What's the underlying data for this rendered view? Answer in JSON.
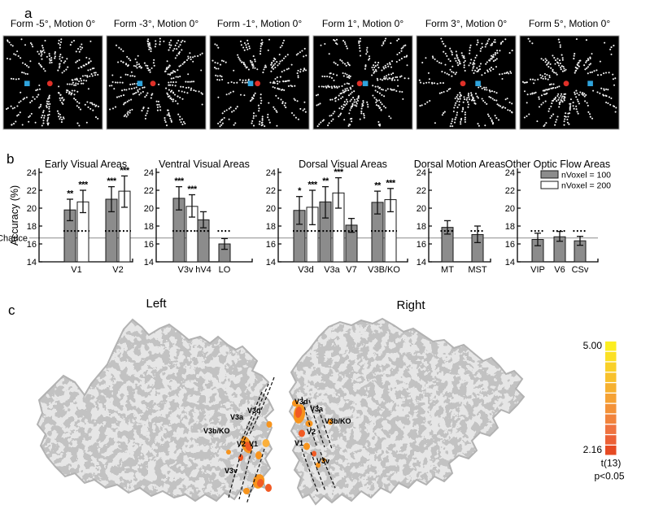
{
  "panel_a": {
    "label": "a",
    "marker_colors": {
      "red": "#e03028",
      "blue": "#2fa3dc"
    },
    "dot_color": "#f4f4f4",
    "stimuli": [
      {
        "title": "Form -5°, Motion 0°",
        "seed": 11,
        "red_fx": 0.47,
        "blue_fx": 0.24
      },
      {
        "title": "Form -3°, Motion 0°",
        "seed": 22,
        "red_fx": 0.467,
        "blue_fx": 0.335
      },
      {
        "title": "Form -1°, Motion 0°",
        "seed": 33,
        "red_fx": 0.48,
        "blue_fx": 0.41
      },
      {
        "title": "Form 1°, Motion 0°",
        "seed": 44,
        "red_fx": 0.468,
        "blue_fx": 0.525
      },
      {
        "title": "Form 3°, Motion 0°",
        "seed": 55,
        "red_fx": 0.467,
        "blue_fx": 0.62
      },
      {
        "title": "Form 5°, Motion 0°",
        "seed": 66,
        "red_fx": 0.467,
        "blue_fx": 0.71
      }
    ]
  },
  "panel_b": {
    "label": "b",
    "ylabel": "Accuracy (%)",
    "chance_label": "Chance",
    "chance_value": 16.67,
    "dotted_level": 17.45,
    "bar_colors": {
      "nvoxel100": "#8c8c8c",
      "nvoxel200": "#ffffff"
    },
    "legend": [
      {
        "label": "nVoxel = 100",
        "fill": "#8c8c8c"
      },
      {
        "label": "nVoxel = 200",
        "fill": "#ffffff"
      }
    ]
  },
  "chart_data": [
    {
      "type": "bar",
      "title": "Early Visual Areas",
      "ylim": [
        14,
        24
      ],
      "yticks": [
        14,
        16,
        18,
        20,
        22,
        24
      ],
      "categories": [
        "V1",
        "V2"
      ],
      "series": [
        {
          "name": "nVoxel = 100",
          "values": [
            19.8,
            21.0
          ],
          "err_lo": [
            18.6,
            19.6
          ],
          "err_hi": [
            21.0,
            22.4
          ],
          "sig": [
            "**",
            "***"
          ]
        },
        {
          "name": "nVoxel = 200",
          "values": [
            20.7,
            21.9
          ],
          "err_lo": [
            19.5,
            20.1
          ],
          "err_hi": [
            22.0,
            23.6
          ],
          "sig": [
            "***",
            "***"
          ]
        }
      ]
    },
    {
      "type": "bar",
      "title": "Ventral Visual Areas",
      "ylim": [
        14,
        24
      ],
      "yticks": [
        14,
        16,
        18,
        20,
        22,
        24
      ],
      "categories": [
        "V3v",
        "hV4",
        "LO"
      ],
      "series": [
        {
          "name": "nVoxel = 100",
          "values": [
            21.1,
            18.7,
            16.0
          ],
          "err_lo": [
            19.8,
            17.8,
            15.4
          ],
          "err_hi": [
            22.4,
            19.6,
            16.6
          ],
          "sig": [
            "***",
            null,
            null
          ]
        },
        {
          "name": "nVoxel = 200",
          "values": [
            20.2,
            null,
            null
          ],
          "err_lo": [
            19.0,
            null,
            null
          ],
          "err_hi": [
            21.5,
            null,
            null
          ],
          "sig": [
            "***",
            null,
            null
          ]
        }
      ]
    },
    {
      "type": "bar",
      "title": "Dorsal Visual Areas",
      "ylim": [
        14,
        24
      ],
      "yticks": [
        14,
        16,
        18,
        20,
        22,
        24
      ],
      "categories": [
        "V3d",
        "V3a",
        "V7",
        "V3B/KO"
      ],
      "series": [
        {
          "name": "nVoxel = 100",
          "values": [
            19.75,
            20.7,
            18.1,
            20.65
          ],
          "err_lo": [
            18.2,
            18.9,
            17.3,
            19.35
          ],
          "err_hi": [
            21.3,
            22.4,
            18.85,
            21.9
          ],
          "sig": [
            "*",
            "**",
            null,
            "**"
          ]
        },
        {
          "name": "nVoxel = 200",
          "values": [
            20.1,
            21.7,
            null,
            20.95
          ],
          "err_lo": [
            18.15,
            20.0,
            null,
            19.6
          ],
          "err_hi": [
            22.0,
            23.4,
            null,
            22.2
          ],
          "sig": [
            "***",
            "***",
            null,
            "***"
          ]
        }
      ]
    },
    {
      "type": "bar",
      "title": "Dorsal Motion Areas",
      "ylim": [
        14,
        24
      ],
      "yticks": [
        14,
        16,
        18,
        20,
        22,
        24
      ],
      "categories": [
        "MT",
        "MST"
      ],
      "series": [
        {
          "name": "nVoxel = 100",
          "values": [
            17.85,
            17.05
          ],
          "err_lo": [
            17.1,
            16.15
          ],
          "err_hi": [
            18.6,
            18.0
          ],
          "sig": [
            null,
            null
          ]
        },
        {
          "name": "nVoxel = 200",
          "values": [
            null,
            null
          ],
          "err_lo": [
            null,
            null
          ],
          "err_hi": [
            null,
            null
          ],
          "sig": [
            null,
            null
          ]
        }
      ]
    },
    {
      "type": "bar",
      "title": "Other Optic Flow Areas",
      "ylim": [
        14,
        24
      ],
      "yticks": [
        14,
        16,
        18,
        20,
        22,
        24
      ],
      "categories": [
        "VIP",
        "V6",
        "CSv"
      ],
      "series": [
        {
          "name": "nVoxel = 100",
          "values": [
            16.5,
            16.8,
            16.35
          ],
          "err_lo": [
            15.8,
            16.3,
            15.85
          ],
          "err_hi": [
            17.2,
            17.4,
            16.85
          ],
          "sig": [
            null,
            null,
            null
          ]
        },
        {
          "name": "nVoxel = 200",
          "values": [
            null,
            null,
            null
          ],
          "err_lo": [
            null,
            null,
            null
          ],
          "err_hi": [
            null,
            null,
            null
          ],
          "sig": [
            null,
            null,
            null
          ]
        }
      ]
    }
  ],
  "panel_c": {
    "label": "c",
    "left_title": "Left",
    "right_title": "Right",
    "left_labels": [
      "V3d",
      "V3a",
      "V3b/KO",
      "V2",
      "V1",
      "V3v"
    ],
    "right_labels": [
      "V3d",
      "V3a",
      "V3b/KO",
      "V2",
      "V1",
      "V3v"
    ],
    "activation_colors": [
      "#f7941d",
      "#f15a24",
      "#fbb03b"
    ],
    "colorbar": {
      "max_label": "5.00",
      "min_label": "2.16",
      "stat_label": "t(13)",
      "p_label": "p<0.05",
      "colors": [
        "#fcee21",
        "#fbe024",
        "#f9d028",
        "#f8c12c",
        "#f6b130",
        "#f5a234",
        "#f39238",
        "#f1833c",
        "#ef7340",
        "#ec6136",
        "#e64a22"
      ]
    }
  }
}
